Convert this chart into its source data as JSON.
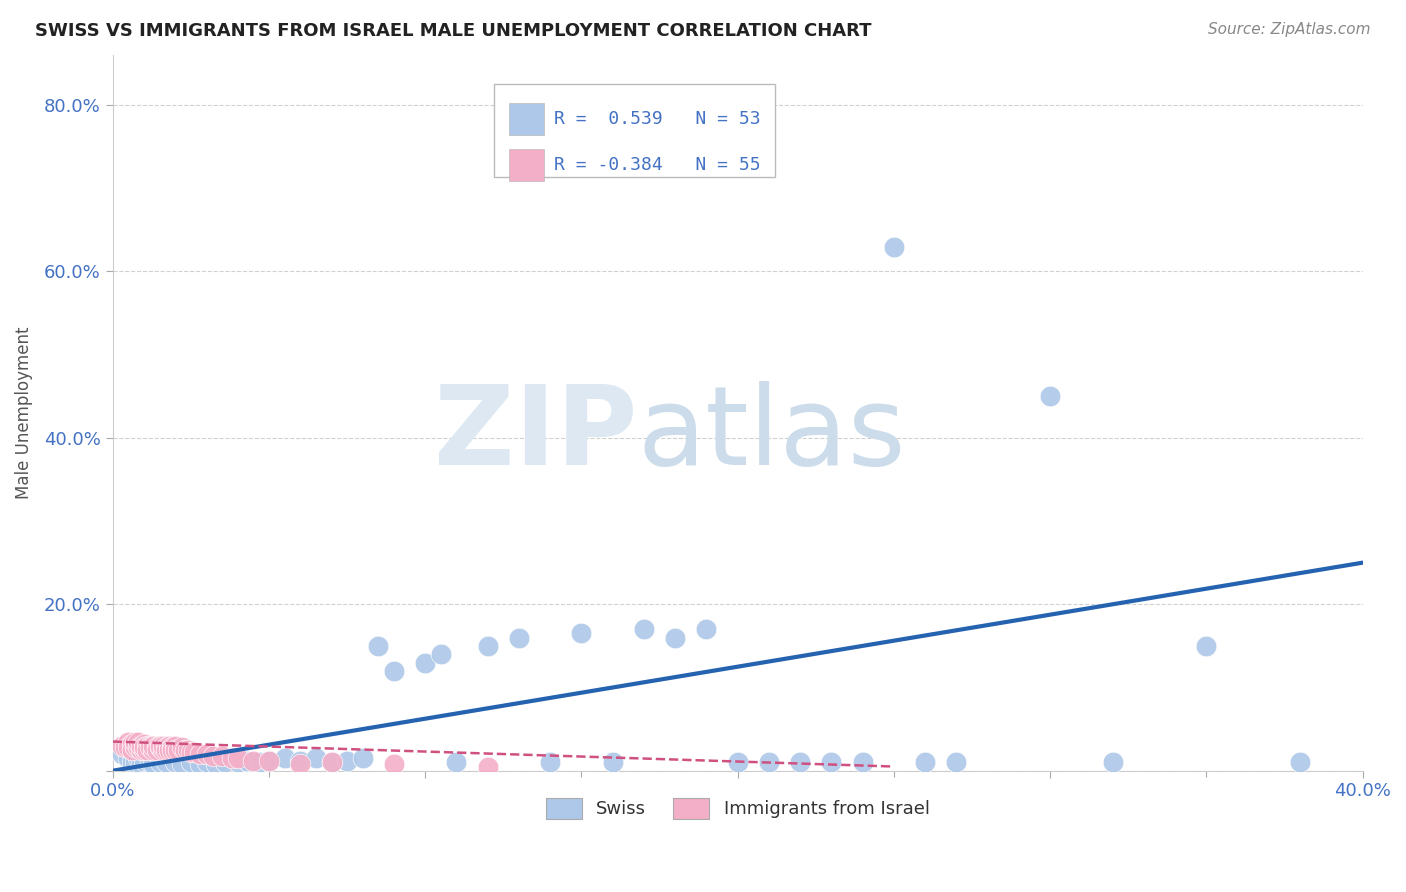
{
  "title": "SWISS VS IMMIGRANTS FROM ISRAEL MALE UNEMPLOYMENT CORRELATION CHART",
  "source": "Source: ZipAtlas.com",
  "ylabel": "Male Unemployment",
  "xlim": [
    0.0,
    0.4
  ],
  "ylim": [
    0.0,
    0.86
  ],
  "swiss_R": 0.539,
  "swiss_N": 53,
  "israel_R": -0.384,
  "israel_N": 55,
  "swiss_color": "#adc8e8",
  "swiss_edge_color": "#adc8e8",
  "swiss_line_color": "#2563b0",
  "israel_color": "#f4afc8",
  "israel_edge_color": "#f4afc8",
  "israel_line_color": "#d05080",
  "tick_color": "#4472c4",
  "label_color": "#555555",
  "grid_color": "#cccccc",
  "watermark_zip_color": "#dde8f2",
  "watermark_atlas_color": "#ccdcea",
  "swiss_x": [
    0.003,
    0.005,
    0.006,
    0.007,
    0.008,
    0.009,
    0.01,
    0.012,
    0.013,
    0.015,
    0.017,
    0.02,
    0.022,
    0.025,
    0.028,
    0.03,
    0.033,
    0.036,
    0.04,
    0.043,
    0.047,
    0.05,
    0.055,
    0.06,
    0.065,
    0.07,
    0.075,
    0.08,
    0.085,
    0.09,
    0.1,
    0.105,
    0.11,
    0.12,
    0.13,
    0.14,
    0.15,
    0.16,
    0.17,
    0.18,
    0.19,
    0.2,
    0.21,
    0.22,
    0.23,
    0.24,
    0.25,
    0.26,
    0.27,
    0.3,
    0.32,
    0.35,
    0.38
  ],
  "swiss_y": [
    0.02,
    0.015,
    0.01,
    0.01,
    0.015,
    0.008,
    0.012,
    0.01,
    0.008,
    0.01,
    0.01,
    0.01,
    0.008,
    0.01,
    0.008,
    0.01,
    0.008,
    0.01,
    0.01,
    0.012,
    0.01,
    0.012,
    0.015,
    0.012,
    0.015,
    0.01,
    0.012,
    0.015,
    0.15,
    0.12,
    0.13,
    0.14,
    0.01,
    0.15,
    0.16,
    0.01,
    0.165,
    0.01,
    0.17,
    0.16,
    0.17,
    0.01,
    0.01,
    0.01,
    0.01,
    0.01,
    0.63,
    0.01,
    0.01,
    0.45,
    0.01,
    0.15,
    0.01
  ],
  "israel_x": [
    0.003,
    0.004,
    0.005,
    0.005,
    0.006,
    0.006,
    0.007,
    0.007,
    0.007,
    0.008,
    0.008,
    0.008,
    0.009,
    0.009,
    0.01,
    0.01,
    0.01,
    0.011,
    0.011,
    0.012,
    0.012,
    0.013,
    0.013,
    0.014,
    0.014,
    0.015,
    0.015,
    0.016,
    0.016,
    0.017,
    0.017,
    0.018,
    0.018,
    0.019,
    0.019,
    0.02,
    0.02,
    0.021,
    0.022,
    0.023,
    0.024,
    0.025,
    0.026,
    0.028,
    0.03,
    0.032,
    0.035,
    0.038,
    0.04,
    0.045,
    0.05,
    0.06,
    0.07,
    0.09,
    0.12
  ],
  "israel_y": [
    0.03,
    0.028,
    0.035,
    0.028,
    0.032,
    0.025,
    0.03,
    0.028,
    0.035,
    0.03,
    0.028,
    0.035,
    0.025,
    0.03,
    0.032,
    0.025,
    0.028,
    0.03,
    0.025,
    0.03,
    0.028,
    0.025,
    0.03,
    0.028,
    0.025,
    0.028,
    0.03,
    0.025,
    0.03,
    0.028,
    0.025,
    0.03,
    0.025,
    0.028,
    0.025,
    0.03,
    0.025,
    0.025,
    0.028,
    0.025,
    0.025,
    0.022,
    0.022,
    0.02,
    0.02,
    0.018,
    0.018,
    0.015,
    0.015,
    0.012,
    0.012,
    0.008,
    0.01,
    0.008,
    0.005
  ],
  "swiss_trend_x": [
    0.0,
    0.4
  ],
  "swiss_trend_y": [
    0.0,
    0.25
  ],
  "israel_trend_x": [
    0.0,
    0.25
  ],
  "israel_trend_y": [
    0.035,
    0.005
  ]
}
